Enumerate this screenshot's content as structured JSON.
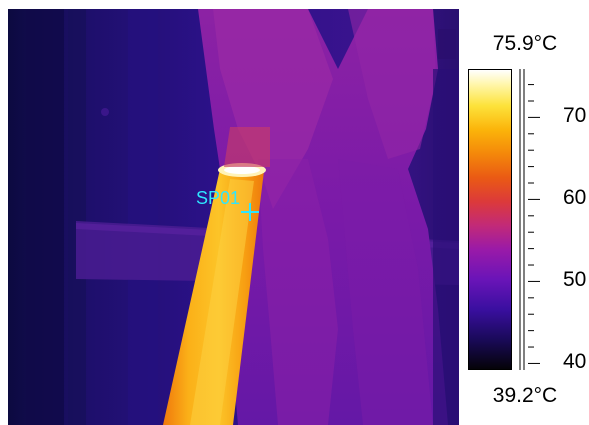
{
  "measurement": {
    "spot_label": "SP01"
  },
  "scale": {
    "max_label": "75.9°C",
    "min_label": "39.2°C",
    "min_value": 39.2,
    "max_value": 75.9,
    "ticks": [
      {
        "value": 40,
        "label": "40"
      },
      {
        "value": 50,
        "label": "50"
      },
      {
        "value": 60,
        "label": "60"
      },
      {
        "value": 70,
        "label": "70"
      }
    ]
  },
  "colors": {
    "spot_marker": "#2ee6ff",
    "palette": "ironbow"
  }
}
